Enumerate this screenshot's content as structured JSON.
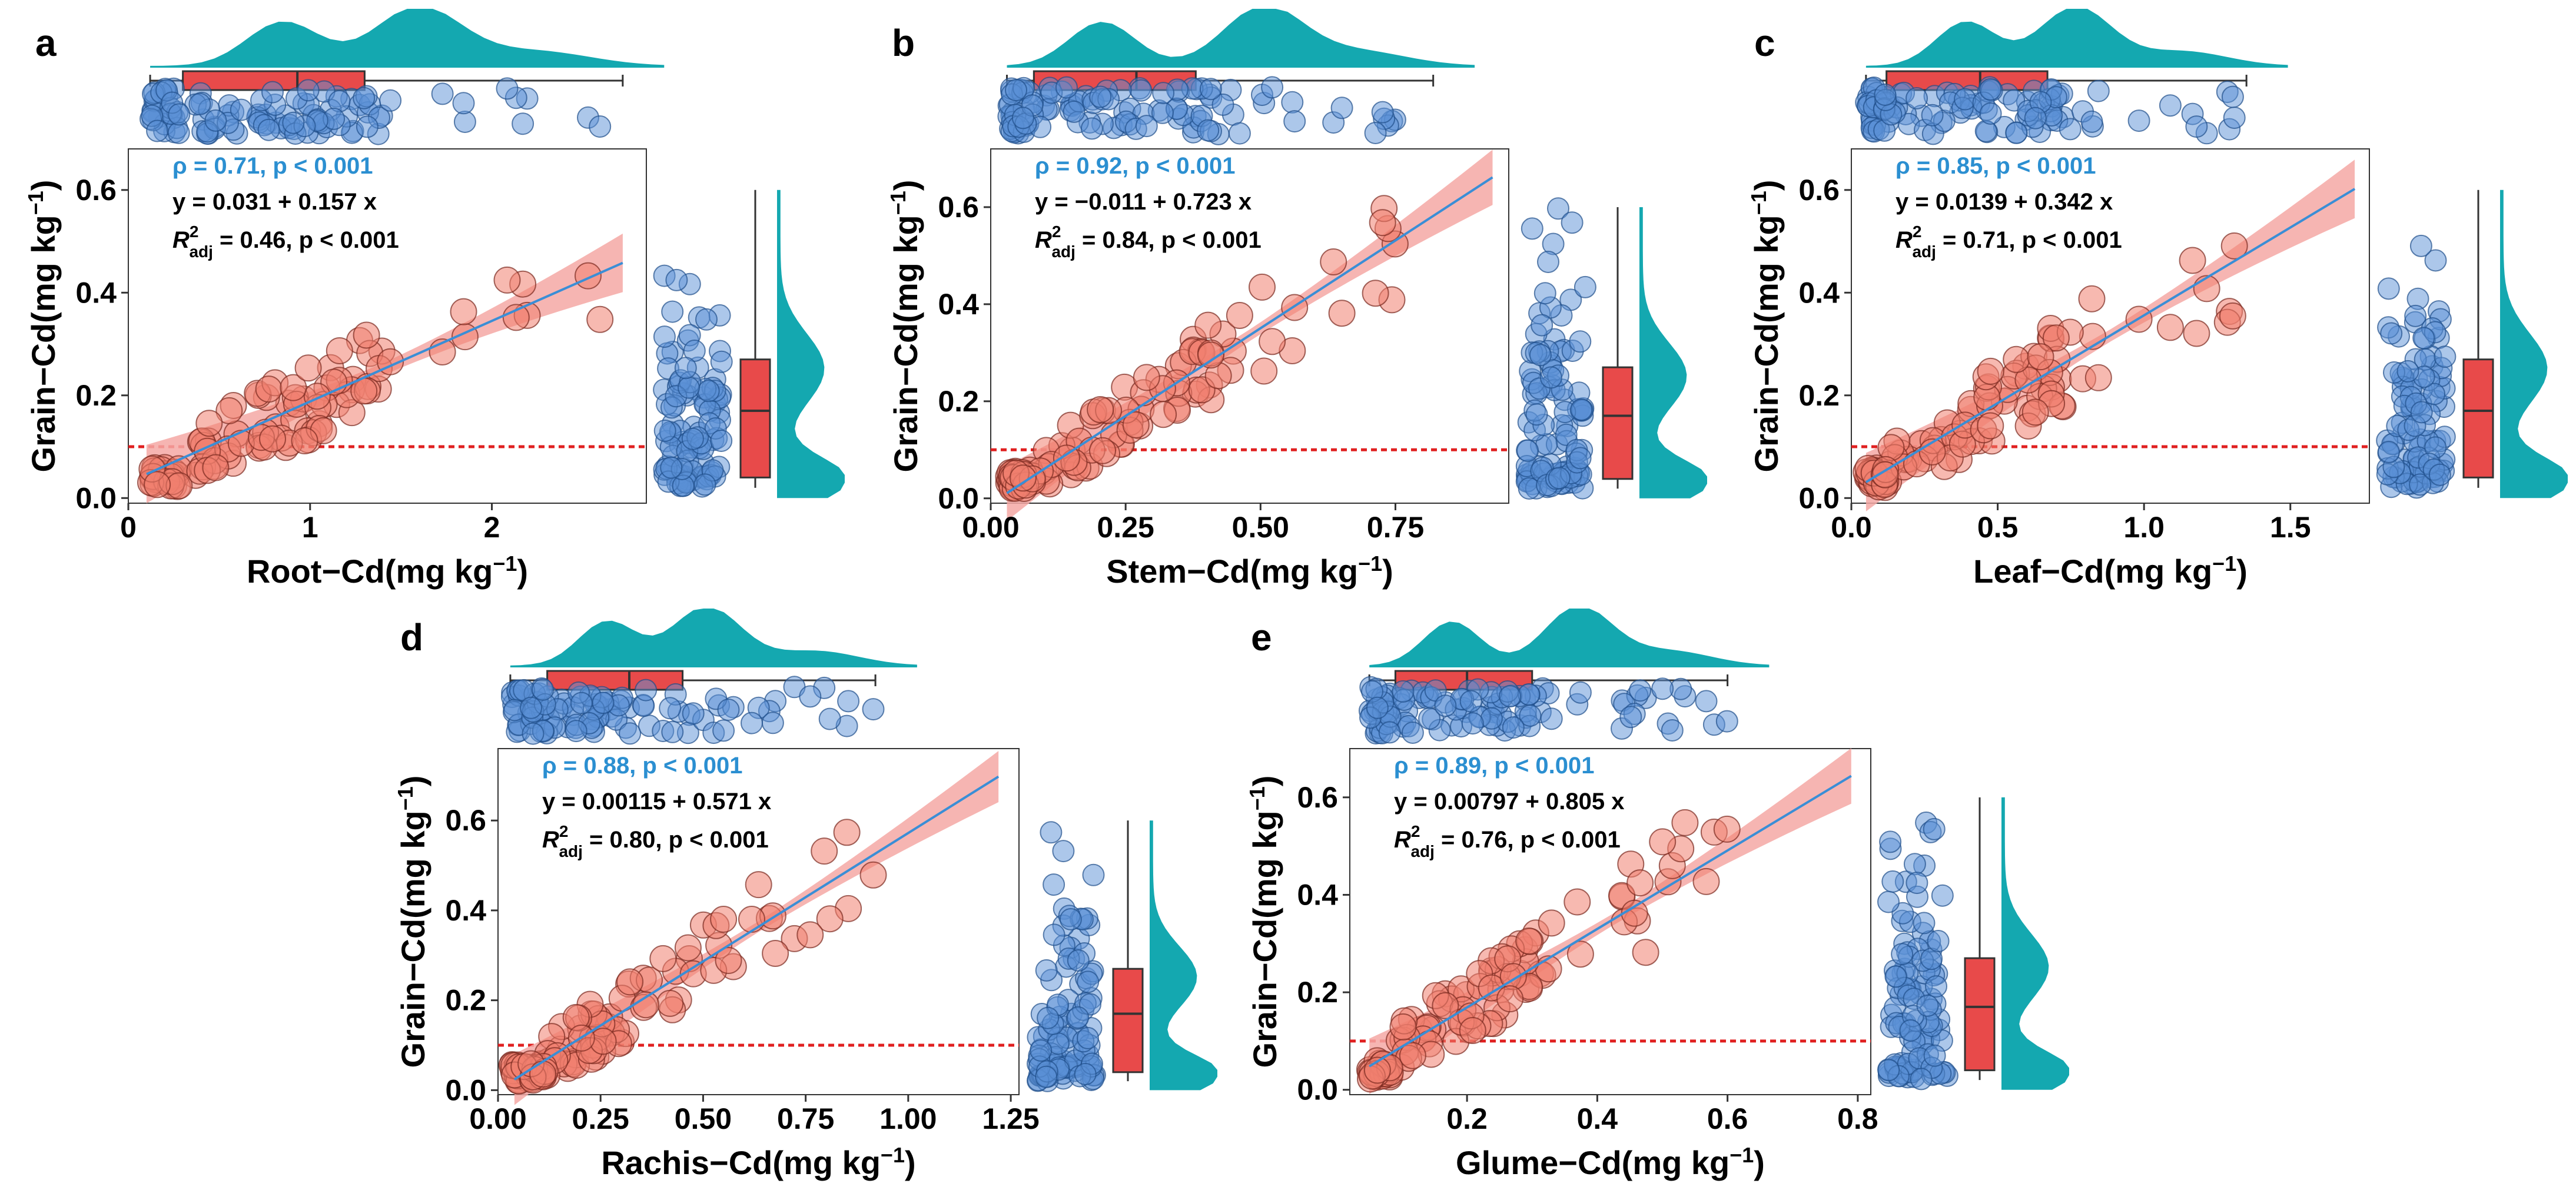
{
  "colors": {
    "scatter_fill": "#f08070",
    "scatter_stroke": "#7a2a20",
    "jitter_fill": "#5a8fd6",
    "jitter_stroke": "#1f4f8a",
    "box_fill": "#e84a4a",
    "density_fill": "#14a8b0",
    "fit_line": "#3a8ed6",
    "ci_band": "#f5a8a4",
    "threshold_line": "#e02020"
  },
  "chart_data": [
    {
      "type": "scatter",
      "panel": "a",
      "ylabel": "Grain−Cd(mg kg",
      "ylabel_sup": "−1",
      "ylabel_close": ")",
      "xlabel": "Root−Cd",
      "xlabel_unit": "(mg kg",
      "xlabel_sup": "−1",
      "xlabel_close": ")",
      "xlim": [
        0,
        2.85
      ],
      "ylim": [
        -0.01,
        0.68
      ],
      "xticks": [
        0,
        1,
        2
      ],
      "xtick_labels": [
        "0",
        "1",
        "2"
      ],
      "yticks": [
        0,
        0.2,
        0.4,
        0.6
      ],
      "ytick_labels": [
        "0.0",
        "0.2",
        "0.4",
        "0.6"
      ],
      "threshold": 0.1,
      "fit": {
        "intercept": 0.031,
        "slope": 0.157,
        "x_range": [
          0.1,
          2.72
        ]
      },
      "rho_text": "ρ = 0.71, p < 0.001",
      "eq_text": "y = 0.031 + 0.157 x",
      "r2_text": "R",
      "r2_sub": "adj",
      "r2_rest": " = 0.46, p < 0.001",
      "x_box": {
        "min": 0.12,
        "q1": 0.3,
        "median": 0.93,
        "q3": 1.3,
        "max": 2.72
      },
      "y_box": {
        "min": 0.02,
        "q1": 0.04,
        "median": 0.17,
        "q3": 0.27,
        "max": 0.6
      },
      "seed": 11
    },
    {
      "type": "scatter",
      "panel": "b",
      "ylabel": "Grain−Cd(mg kg",
      "ylabel_sup": "−1",
      "ylabel_close": ")",
      "xlabel": "Stem−Cd",
      "xlabel_unit": "(mg kg",
      "xlabel_sup": "−1",
      "xlabel_close": ")",
      "xlim": [
        0,
        0.96
      ],
      "ylim": [
        -0.01,
        0.72
      ],
      "xticks": [
        0,
        0.25,
        0.5,
        0.75
      ],
      "xtick_labels": [
        "0.00",
        "0.25",
        "0.50",
        "0.75"
      ],
      "yticks": [
        0,
        0.2,
        0.4,
        0.6
      ],
      "ytick_labels": [
        "0.0",
        "0.2",
        "0.4",
        "0.6"
      ],
      "threshold": 0.1,
      "fit": {
        "intercept": -0.011,
        "slope": 0.723,
        "x_range": [
          0.03,
          0.93
        ]
      },
      "rho_text": "ρ = 0.92, p < 0.001",
      "eq_text": "y = −0.011 + 0.723 x",
      "r2_text": "R",
      "r2_sub": "adj",
      "r2_rest": " = 0.84, p < 0.001",
      "x_box": {
        "min": 0.03,
        "q1": 0.08,
        "median": 0.27,
        "q3": 0.38,
        "max": 0.82
      },
      "y_box": {
        "min": 0.02,
        "q1": 0.04,
        "median": 0.17,
        "q3": 0.27,
        "max": 0.6
      },
      "seed": 23
    },
    {
      "type": "scatter",
      "panel": "c",
      "ylabel": "Grain−Cd(mg kg",
      "ylabel_sup": "−1",
      "ylabel_close": ")",
      "xlabel": "Leaf−Cd",
      "xlabel_unit": "(mg kg",
      "xlabel_sup": "−1",
      "xlabel_close": ")",
      "xlim": [
        0,
        1.77
      ],
      "ylim": [
        -0.01,
        0.68
      ],
      "xticks": [
        0,
        0.5,
        1.0,
        1.5
      ],
      "xtick_labels": [
        "0.0",
        "0.5",
        "1.0",
        "1.5"
      ],
      "yticks": [
        0,
        0.2,
        0.4,
        0.6
      ],
      "ytick_labels": [
        "0.0",
        "0.2",
        "0.4",
        "0.6"
      ],
      "threshold": 0.1,
      "fit": {
        "intercept": 0.0139,
        "slope": 0.342,
        "x_range": [
          0.05,
          1.72
        ]
      },
      "rho_text": "ρ = 0.85, p < 0.001",
      "eq_text": "y = 0.0139 + 0.342 x",
      "r2_text": "R",
      "r2_sub": "adj",
      "r2_rest": " = 0.71, p < 0.001",
      "x_box": {
        "min": 0.05,
        "q1": 0.12,
        "median": 0.44,
        "q3": 0.67,
        "max": 1.35
      },
      "y_box": {
        "min": 0.02,
        "q1": 0.04,
        "median": 0.17,
        "q3": 0.27,
        "max": 0.6
      },
      "seed": 37
    },
    {
      "type": "scatter",
      "panel": "d",
      "ylabel": "Grain−Cd(mg kg",
      "ylabel_sup": "−1",
      "ylabel_close": ")",
      "xlabel": "Rachis−Cd",
      "xlabel_unit": "(mg kg",
      "xlabel_sup": "−1",
      "xlabel_close": ")",
      "xlim": [
        0,
        1.27
      ],
      "ylim": [
        -0.01,
        0.76
      ],
      "xticks": [
        0,
        0.25,
        0.5,
        0.75,
        1.0,
        1.25
      ],
      "xtick_labels": [
        "0.00",
        "0.25",
        "0.50",
        "0.75",
        "1.00",
        "1.25"
      ],
      "yticks": [
        0,
        0.2,
        0.4,
        0.6
      ],
      "ytick_labels": [
        "0.0",
        "0.2",
        "0.4",
        "0.6"
      ],
      "threshold": 0.1,
      "fit": {
        "intercept": 0.00115,
        "slope": 0.571,
        "x_range": [
          0.04,
          1.22
        ]
      },
      "rho_text": "ρ = 0.88, p < 0.001",
      "eq_text": "y = 0.00115 + 0.571 x",
      "r2_text": "R",
      "r2_sub": "adj",
      "r2_rest": " = 0.80, p < 0.001",
      "x_box": {
        "min": 0.03,
        "q1": 0.12,
        "median": 0.32,
        "q3": 0.45,
        "max": 0.92
      },
      "y_box": {
        "min": 0.02,
        "q1": 0.04,
        "median": 0.17,
        "q3": 0.27,
        "max": 0.6
      },
      "seed": 53
    },
    {
      "type": "scatter",
      "panel": "e",
      "ylabel": "Grain−Cd(mg kg",
      "ylabel_sup": "−1",
      "ylabel_close": ")",
      "xlabel": "Glume−Cd",
      "xlabel_unit": "(mg kg",
      "xlabel_sup": "−1",
      "xlabel_close": ")",
      "xlim": [
        0.02,
        0.82
      ],
      "ylim": [
        -0.01,
        0.7
      ],
      "xticks": [
        0.2,
        0.4,
        0.6,
        0.8
      ],
      "xtick_labels": [
        "0.2",
        "0.4",
        "0.6",
        "0.8"
      ],
      "yticks": [
        0,
        0.2,
        0.4,
        0.6
      ],
      "ytick_labels": [
        "0.0",
        "0.2",
        "0.4",
        "0.6"
      ],
      "threshold": 0.1,
      "fit": {
        "intercept": 0.00797,
        "slope": 0.805,
        "x_range": [
          0.05,
          0.79
        ]
      },
      "rho_text": "ρ = 0.89, p < 0.001",
      "eq_text": "y = 0.00797 + 0.805 x",
      "r2_text": "R",
      "r2_sub": "adj",
      "r2_rest": " = 0.76, p < 0.001",
      "x_box": {
        "min": 0.05,
        "q1": 0.09,
        "median": 0.2,
        "q3": 0.3,
        "max": 0.6
      },
      "y_box": {
        "min": 0.02,
        "q1": 0.04,
        "median": 0.17,
        "q3": 0.27,
        "max": 0.6
      },
      "seed": 71
    }
  ]
}
